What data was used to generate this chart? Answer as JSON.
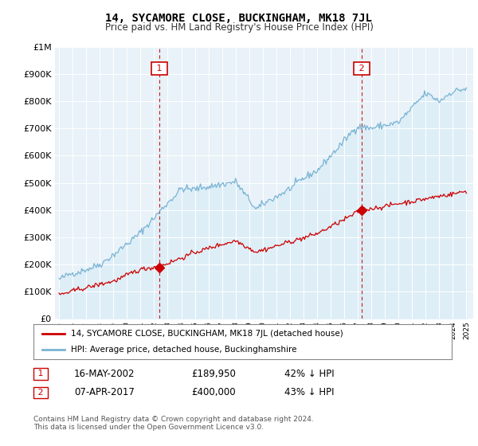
{
  "title": "14, SYCAMORE CLOSE, BUCKINGHAM, MK18 7JL",
  "subtitle": "Price paid vs. HM Land Registry's House Price Index (HPI)",
  "ylim": [
    0,
    1000000
  ],
  "yticks": [
    0,
    100000,
    200000,
    300000,
    400000,
    500000,
    600000,
    700000,
    800000,
    900000,
    1000000
  ],
  "ytick_labels": [
    "£0",
    "£100K",
    "£200K",
    "£300K",
    "£400K",
    "£500K",
    "£600K",
    "£700K",
    "£800K",
    "£900K",
    "£1M"
  ],
  "sale1_year": 2002.37,
  "sale1_price": 189950,
  "sale1_label": "1",
  "sale1_date": "16-MAY-2002",
  "sale1_price_str": "£189,950",
  "sale1_pct": "42% ↓ HPI",
  "sale2_year": 2017.27,
  "sale2_price": 400000,
  "sale2_label": "2",
  "sale2_date": "07-APR-2017",
  "sale2_price_str": "£400,000",
  "sale2_pct": "43% ↓ HPI",
  "hpi_color": "#7ab3d4",
  "hpi_fill_color": "#ddeef7",
  "sale_color": "#cc0000",
  "legend_label_sale": "14, SYCAMORE CLOSE, BUCKINGHAM, MK18 7JL (detached house)",
  "legend_label_hpi": "HPI: Average price, detached house, Buckinghamshire",
  "footnote": "Contains HM Land Registry data © Crown copyright and database right 2024.\nThis data is licensed under the Open Government Licence v3.0.",
  "bg_color": "#ddeef7",
  "plot_bg": "#e8f2f8",
  "grid_color": "#ffffff"
}
